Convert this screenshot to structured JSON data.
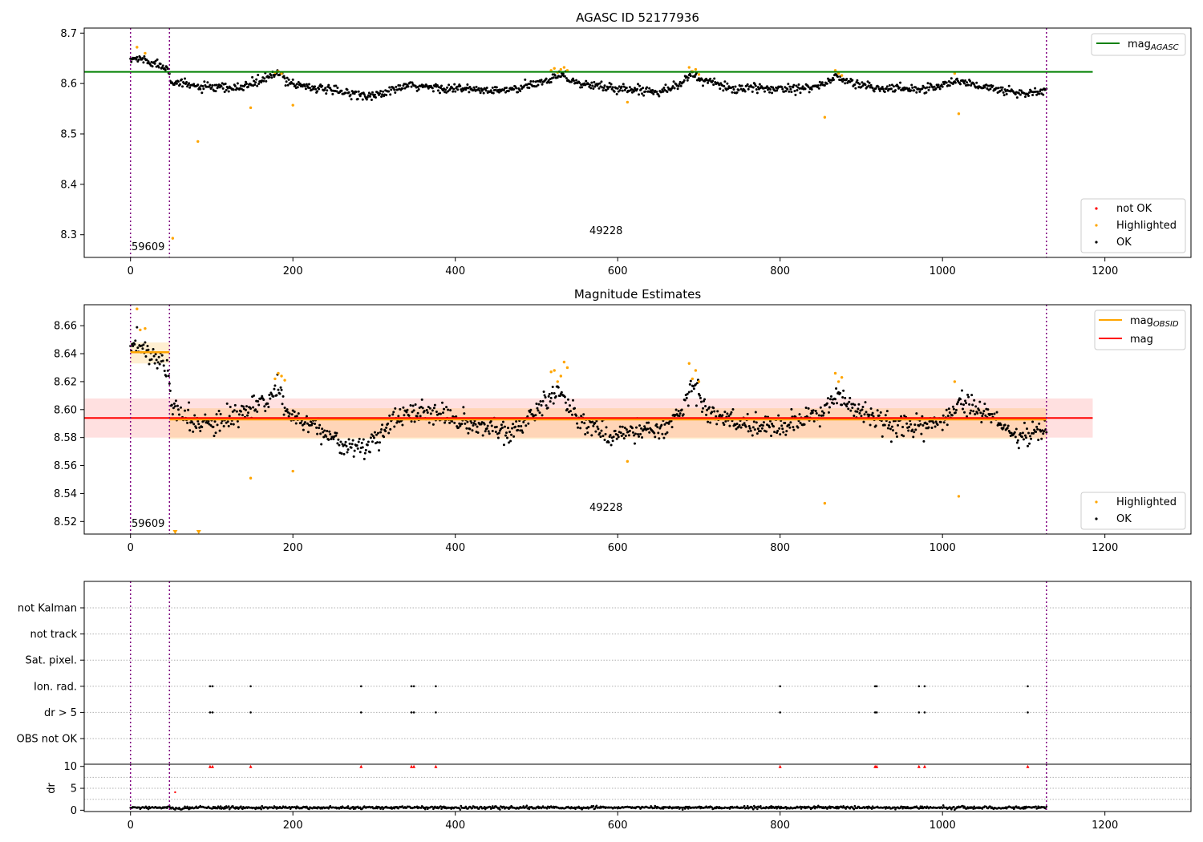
{
  "colors": {
    "ok": "#000000",
    "highlighted": "#ffa500",
    "not_ok": "#ff0000",
    "agasc_line": "#008000",
    "mag_line": "#ff0000",
    "obsid_line": "#ffa500",
    "obs_boundary": "#800080"
  },
  "chart_data": [
    {
      "type": "scatter",
      "title": "AGASC ID 52177936",
      "xlabel": "",
      "ylabel": "",
      "xlim": [
        -57,
        1306
      ],
      "ylim": [
        8.255,
        8.71
      ],
      "xticks": [
        0,
        200,
        400,
        600,
        800,
        1000,
        1200
      ],
      "yticks": [
        8.3,
        8.4,
        8.5,
        8.6,
        8.7
      ],
      "legend_upper": {
        "position": "top-right",
        "entries": [
          "mag_AGASC"
        ]
      },
      "legend_lower": {
        "position": "bottom-right",
        "entries": [
          "not OK",
          "Highlighted",
          "OK"
        ]
      },
      "reference_lines": [
        {
          "name": "mag_AGASC",
          "y": 8.623,
          "x_range": [
            -57,
            1185
          ]
        }
      ],
      "obs_boundaries": [
        0,
        48,
        1128
      ],
      "annotations": [
        {
          "text": "59609",
          "x": 2,
          "y": 8.27
        },
        {
          "text": "49228",
          "x": 566,
          "y": 8.3
        }
      ],
      "ok_trend": [
        [
          0,
          8.645
        ],
        [
          5,
          8.65
        ],
        [
          15,
          8.648
        ],
        [
          30,
          8.64
        ],
        [
          47,
          8.63
        ],
        [
          50,
          8.605
        ],
        [
          60,
          8.6
        ],
        [
          90,
          8.592
        ],
        [
          130,
          8.59
        ],
        [
          160,
          8.605
        ],
        [
          180,
          8.62
        ],
        [
          200,
          8.6
        ],
        [
          250,
          8.585
        ],
        [
          300,
          8.575
        ],
        [
          340,
          8.595
        ],
        [
          400,
          8.59
        ],
        [
          450,
          8.585
        ],
        [
          480,
          8.59
        ],
        [
          510,
          8.605
        ],
        [
          530,
          8.62
        ],
        [
          550,
          8.6
        ],
        [
          600,
          8.59
        ],
        [
          650,
          8.585
        ],
        [
          680,
          8.6
        ],
        [
          690,
          8.62
        ],
        [
          700,
          8.61
        ],
        [
          740,
          8.59
        ],
        [
          800,
          8.59
        ],
        [
          850,
          8.595
        ],
        [
          870,
          8.615
        ],
        [
          880,
          8.605
        ],
        [
          920,
          8.59
        ],
        [
          980,
          8.59
        ],
        [
          1020,
          8.605
        ],
        [
          1060,
          8.59
        ],
        [
          1100,
          8.58
        ],
        [
          1128,
          8.585
        ]
      ],
      "ok_scatter": 0.008,
      "highlighted_points": [
        [
          8,
          8.672
        ],
        [
          18,
          8.66
        ],
        [
          52,
          8.293
        ],
        [
          83,
          8.485
        ],
        [
          148,
          8.552
        ],
        [
          178,
          8.622
        ],
        [
          182,
          8.624
        ],
        [
          186,
          8.62
        ],
        [
          200,
          8.557
        ],
        [
          518,
          8.626
        ],
        [
          522,
          8.63
        ],
        [
          526,
          8.622
        ],
        [
          530,
          8.628
        ],
        [
          534,
          8.632
        ],
        [
          538,
          8.626
        ],
        [
          612,
          8.563
        ],
        [
          688,
          8.632
        ],
        [
          692,
          8.624
        ],
        [
          696,
          8.628
        ],
        [
          700,
          8.618
        ],
        [
          855,
          8.533
        ],
        [
          868,
          8.626
        ],
        [
          872,
          8.62
        ],
        [
          876,
          8.616
        ],
        [
          1015,
          8.62
        ],
        [
          1020,
          8.54
        ]
      ]
    },
    {
      "type": "scatter",
      "title": "Magnitude Estimates",
      "xlabel": "",
      "ylabel": "",
      "xlim": [
        -57,
        1306
      ],
      "ylim": [
        8.511,
        8.675
      ],
      "xticks": [
        0,
        200,
        400,
        600,
        800,
        1000,
        1200
      ],
      "yticks": [
        8.52,
        8.54,
        8.56,
        8.58,
        8.6,
        8.62,
        8.64,
        8.66
      ],
      "legend_upper": {
        "position": "top-right",
        "entries": [
          "mag_OBSID",
          "mag"
        ]
      },
      "legend_lower": {
        "position": "bottom-right",
        "entries": [
          "Highlighted",
          "OK"
        ]
      },
      "mag": {
        "value": 8.594,
        "band": [
          8.58,
          8.608
        ],
        "x_range": [
          -57,
          1185
        ]
      },
      "mag_obsid": [
        {
          "x_range": [
            0,
            48
          ],
          "value": 8.641,
          "band": [
            8.633,
            8.648
          ]
        },
        {
          "x_range": [
            48,
            1128
          ],
          "value": 8.593,
          "band": [
            8.579,
            8.601
          ]
        }
      ],
      "obs_boundaries": [
        0,
        48,
        1128
      ],
      "annotations": [
        {
          "text": "59609",
          "x": 2,
          "y": 8.517
        },
        {
          "text": "49228",
          "x": 566,
          "y": 8.529
        }
      ],
      "ok_trend": [
        [
          0,
          8.643
        ],
        [
          10,
          8.646
        ],
        [
          20,
          8.643
        ],
        [
          35,
          8.635
        ],
        [
          47,
          8.628
        ],
        [
          50,
          8.605
        ],
        [
          60,
          8.595
        ],
        [
          100,
          8.588
        ],
        [
          140,
          8.598
        ],
        [
          170,
          8.605
        ],
        [
          180,
          8.615
        ],
        [
          195,
          8.597
        ],
        [
          230,
          8.588
        ],
        [
          260,
          8.575
        ],
        [
          290,
          8.572
        ],
        [
          310,
          8.585
        ],
        [
          340,
          8.598
        ],
        [
          380,
          8.597
        ],
        [
          420,
          8.588
        ],
        [
          470,
          8.584
        ],
        [
          500,
          8.6
        ],
        [
          530,
          8.612
        ],
        [
          550,
          8.595
        ],
        [
          590,
          8.58
        ],
        [
          620,
          8.585
        ],
        [
          660,
          8.588
        ],
        [
          680,
          8.6
        ],
        [
          690,
          8.617
        ],
        [
          700,
          8.612
        ],
        [
          710,
          8.598
        ],
        [
          750,
          8.59
        ],
        [
          800,
          8.588
        ],
        [
          850,
          8.597
        ],
        [
          870,
          8.612
        ],
        [
          880,
          8.605
        ],
        [
          910,
          8.595
        ],
        [
          950,
          8.585
        ],
        [
          1000,
          8.592
        ],
        [
          1020,
          8.605
        ],
        [
          1060,
          8.595
        ],
        [
          1090,
          8.58
        ],
        [
          1128,
          8.585
        ]
      ],
      "ok_scatter": 0.007,
      "highlighted_points": [
        [
          8,
          8.672
        ],
        [
          12,
          8.657
        ],
        [
          18,
          8.658
        ],
        [
          148,
          8.551
        ],
        [
          178,
          8.622
        ],
        [
          182,
          8.626
        ],
        [
          186,
          8.624
        ],
        [
          190,
          8.621
        ],
        [
          200,
          8.556
        ],
        [
          518,
          8.627
        ],
        [
          522,
          8.628
        ],
        [
          526,
          8.62
        ],
        [
          530,
          8.624
        ],
        [
          534,
          8.634
        ],
        [
          538,
          8.63
        ],
        [
          612,
          8.563
        ],
        [
          688,
          8.633
        ],
        [
          692,
          8.622
        ],
        [
          696,
          8.628
        ],
        [
          700,
          8.62
        ],
        [
          855,
          8.533
        ],
        [
          868,
          8.626
        ],
        [
          872,
          8.62
        ],
        [
          876,
          8.623
        ],
        [
          1015,
          8.62
        ],
        [
          1020,
          8.538
        ]
      ],
      "highlighted_clipped": [
        [
          55,
          8.511
        ],
        [
          84,
          8.511
        ]
      ]
    },
    {
      "type": "scatter",
      "title": "",
      "xlabel": "",
      "ylabel": "",
      "xlim": [
        -57,
        1306
      ],
      "xticks": [
        0,
        200,
        400,
        600,
        800,
        1000,
        1200
      ],
      "flag_rows": [
        "not Kalman",
        "not track",
        "Sat. pixel.",
        "Ion. rad.",
        "dr > 5",
        "OBS not OK"
      ],
      "flags": {
        "not Kalman": [],
        "not track": [],
        "Sat. pixel.": [],
        "Ion. rad.": [
          98,
          101,
          148,
          284,
          346,
          349,
          376,
          800,
          917,
          919,
          971,
          978,
          1105
        ],
        "dr > 5": [
          98,
          101,
          148,
          284,
          346,
          349,
          376,
          800,
          917,
          919,
          971,
          978,
          1105
        ],
        "OBS not OK": []
      },
      "obs_boundaries": [
        0,
        48,
        1128
      ]
    },
    {
      "type": "scatter",
      "title": "",
      "xlabel": "",
      "ylabel": "dr",
      "xlim": [
        -57,
        1306
      ],
      "ylim": [
        -0.3,
        10.5
      ],
      "yticks": [
        0,
        5,
        10
      ],
      "xticks": [
        0,
        200,
        400,
        600,
        800,
        1000,
        1200
      ],
      "dr_baseline": 0.6,
      "dr_scatter": 0.3,
      "clipped_points": [
        98,
        101,
        148,
        284,
        346,
        349,
        376,
        800,
        917,
        919,
        971,
        978,
        1105
      ],
      "clipped_value": 10,
      "extra_points": [
        [
          55,
          4.1
        ]
      ],
      "obs_boundaries": [
        0,
        48,
        1128
      ]
    }
  ]
}
